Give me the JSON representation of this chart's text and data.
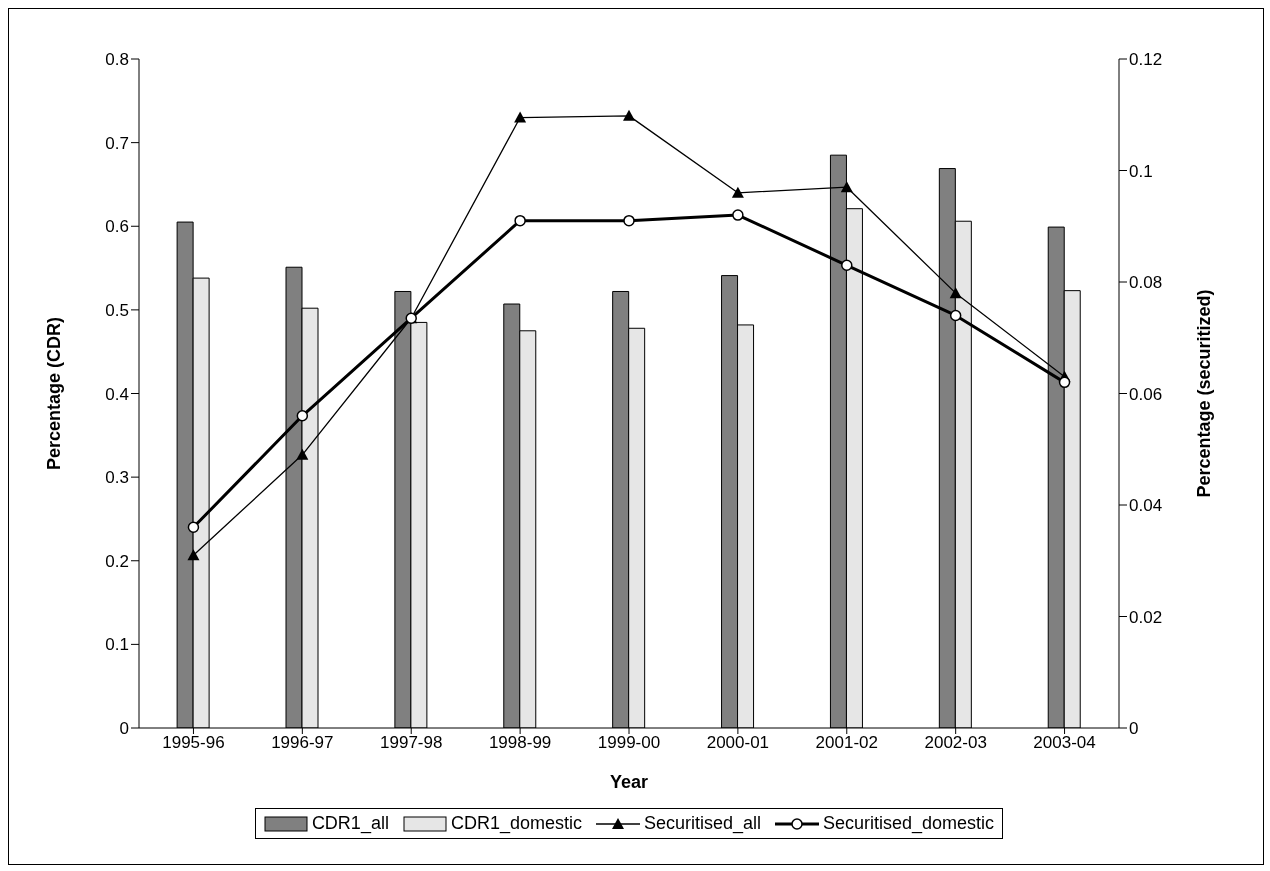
{
  "chart_data": {
    "type": "bar",
    "xlabel": "Year",
    "ylabel": "Percentage (CDR)",
    "y2label": "Percentage (securitized)",
    "categories": [
      "1995-96",
      "1996-97",
      "1997-98",
      "1998-99",
      "1999-00",
      "2000-01",
      "2001-02",
      "2002-03",
      "2003-04"
    ],
    "series": [
      {
        "name": "CDR1_all",
        "color": "#808080",
        "values": [
          0.605,
          0.551,
          0.522,
          0.507,
          0.522,
          0.541,
          0.685,
          0.669,
          0.599
        ]
      },
      {
        "name": "CDR1_domestic",
        "color": "#e6e6e6",
        "values": [
          0.538,
          0.502,
          0.485,
          0.475,
          0.478,
          0.482,
          0.621,
          0.606,
          0.523
        ]
      },
      {
        "name": "Securitised_all",
        "type": "line",
        "axis": "y2",
        "color": "#000000",
        "marker": "triangle",
        "values": [
          0.031,
          0.049,
          0.0735,
          0.1095,
          0.1098,
          0.096,
          0.097,
          0.078,
          0.063
        ]
      },
      {
        "name": "Securitised_domestic",
        "type": "line",
        "axis": "y2",
        "color": "#000000",
        "marker": "circle",
        "values": [
          0.036,
          0.056,
          0.0735,
          0.091,
          0.091,
          0.092,
          0.083,
          0.074,
          0.062
        ]
      }
    ],
    "ylim": [
      0,
      0.8
    ],
    "yticks": [
      0,
      0.1,
      0.2,
      0.3,
      0.4,
      0.5,
      0.6,
      0.7,
      0.8
    ],
    "y2lim": [
      0,
      0.12
    ],
    "y2ticks": [
      0,
      0.02,
      0.04,
      0.06,
      0.08,
      0.1,
      0.12
    ],
    "grid": false,
    "legend": "bottom",
    "line_style": "solid"
  }
}
